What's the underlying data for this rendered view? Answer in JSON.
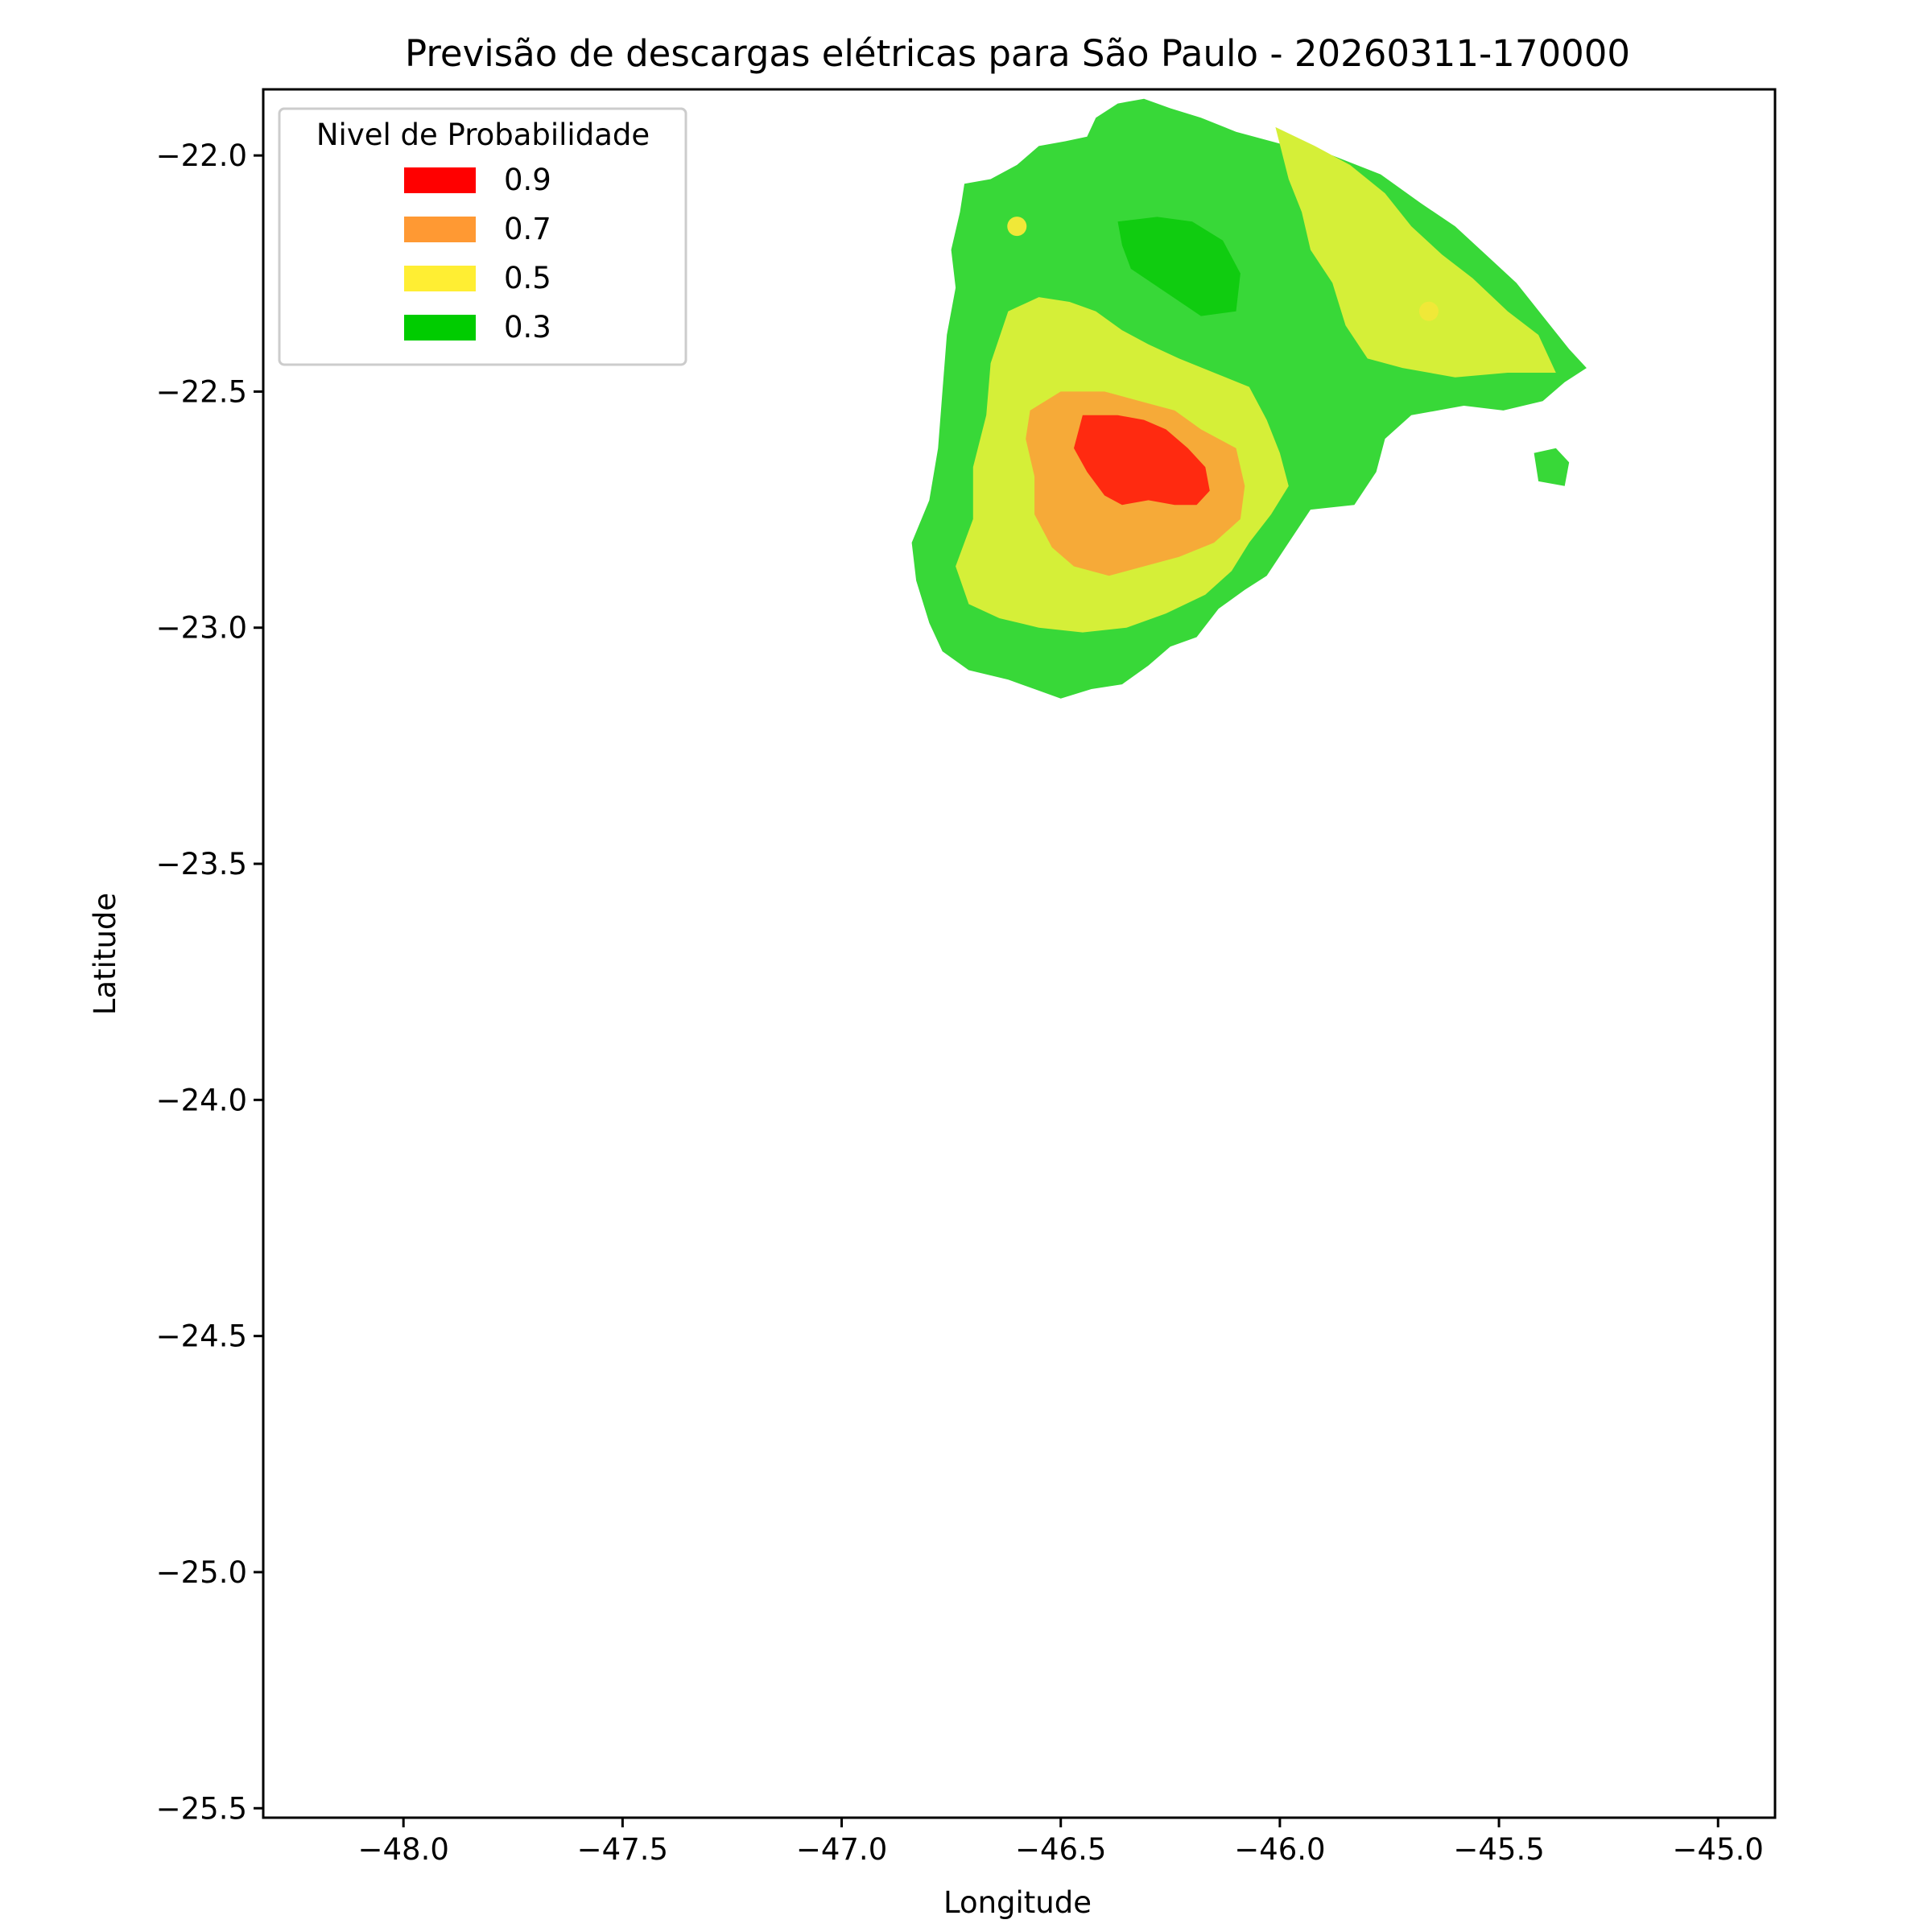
{
  "chart_data": {
    "type": "contourf",
    "title": "Previsão de descargas elétricas para São Paulo - 20260311-170000",
    "xlabel": "Longitude",
    "ylabel": "Latitude",
    "xlim": [
      -48.32,
      -44.87
    ],
    "ylim": [
      -25.52,
      -21.86
    ],
    "xticks": [
      -48.0,
      -47.5,
      -47.0,
      -46.5,
      -46.0,
      -45.5,
      -45.0
    ],
    "xtick_labels": [
      "−48.0",
      "−47.5",
      "−47.0",
      "−46.5",
      "−46.0",
      "−45.5",
      "−45.0"
    ],
    "yticks": [
      -22.0,
      -22.5,
      -23.0,
      -23.5,
      -24.0,
      -24.5,
      -25.0,
      -25.5
    ],
    "ytick_labels": [
      "−22.0",
      "−22.5",
      "−23.0",
      "−23.5",
      "−24.0",
      "−24.5",
      "−25.0",
      "−25.5"
    ],
    "legend": {
      "title": "Nivel de Probabilidade",
      "position": "upper-left",
      "entries": [
        {
          "label": "0.9",
          "color": "#ff0000"
        },
        {
          "label": "0.7",
          "color": "#ff9933"
        },
        {
          "label": "0.5",
          "color": "#ffee33"
        },
        {
          "label": "0.3",
          "color": "#00cc00"
        }
      ]
    },
    "fill_colors": {
      "outer_green": "#38d838",
      "yellow_green": "#d5ef38",
      "orange": "#f6aa38",
      "red": "#ff2a10",
      "dark_green": "#10cc10"
    },
    "regions": [
      {
        "level": "outer_green",
        "coords": [
          [
            -46.72,
            -22.06
          ],
          [
            -46.66,
            -22.05
          ],
          [
            -46.6,
            -22.02
          ],
          [
            -46.55,
            -21.98
          ],
          [
            -46.49,
            -21.97
          ],
          [
            -46.44,
            -21.96
          ],
          [
            -46.42,
            -21.92
          ],
          [
            -46.37,
            -21.89
          ],
          [
            -46.31,
            -21.88
          ],
          [
            -46.25,
            -21.9
          ],
          [
            -46.18,
            -21.92
          ],
          [
            -46.1,
            -21.95
          ],
          [
            -45.98,
            -21.98
          ],
          [
            -45.88,
            -22.0
          ],
          [
            -45.77,
            -22.04
          ],
          [
            -45.68,
            -22.1
          ],
          [
            -45.6,
            -22.15
          ],
          [
            -45.53,
            -22.21
          ],
          [
            -45.46,
            -22.27
          ],
          [
            -45.4,
            -22.34
          ],
          [
            -45.34,
            -22.41
          ],
          [
            -45.3,
            -22.45
          ],
          [
            -45.35,
            -22.48
          ],
          [
            -45.4,
            -22.52
          ],
          [
            -45.49,
            -22.54
          ],
          [
            -45.58,
            -22.53
          ],
          [
            -45.7,
            -22.55
          ],
          [
            -45.76,
            -22.6
          ],
          [
            -45.78,
            -22.67
          ],
          [
            -45.83,
            -22.74
          ],
          [
            -45.93,
            -22.75
          ],
          [
            -45.98,
            -22.82
          ],
          [
            -46.03,
            -22.89
          ],
          [
            -46.08,
            -22.92
          ],
          [
            -46.14,
            -22.96
          ],
          [
            -46.19,
            -23.02
          ],
          [
            -46.25,
            -23.04
          ],
          [
            -46.3,
            -23.08
          ],
          [
            -46.36,
            -23.12
          ],
          [
            -46.43,
            -23.13
          ],
          [
            -46.5,
            -23.15
          ],
          [
            -46.56,
            -23.13
          ],
          [
            -46.62,
            -23.11
          ],
          [
            -46.71,
            -23.09
          ],
          [
            -46.77,
            -23.05
          ],
          [
            -46.8,
            -22.99
          ],
          [
            -46.83,
            -22.9
          ],
          [
            -46.84,
            -22.82
          ],
          [
            -46.8,
            -22.73
          ],
          [
            -46.78,
            -22.62
          ],
          [
            -46.77,
            -22.5
          ],
          [
            -46.76,
            -22.38
          ],
          [
            -46.74,
            -22.28
          ],
          [
            -46.75,
            -22.2
          ],
          [
            -46.73,
            -22.12
          ]
        ]
      },
      {
        "level": "outer_green",
        "coords": [
          [
            -45.42,
            -22.63
          ],
          [
            -45.37,
            -22.62
          ],
          [
            -45.34,
            -22.65
          ],
          [
            -45.35,
            -22.7
          ],
          [
            -45.41,
            -22.69
          ]
        ]
      },
      {
        "level": "yellow_green",
        "coords": [
          [
            -46.62,
            -22.33
          ],
          [
            -46.55,
            -22.3
          ],
          [
            -46.48,
            -22.31
          ],
          [
            -46.42,
            -22.33
          ],
          [
            -46.36,
            -22.37
          ],
          [
            -46.3,
            -22.4
          ],
          [
            -46.23,
            -22.43
          ],
          [
            -46.15,
            -22.46
          ],
          [
            -46.07,
            -22.49
          ],
          [
            -46.03,
            -22.56
          ],
          [
            -46.0,
            -22.63
          ],
          [
            -45.98,
            -22.7
          ],
          [
            -46.02,
            -22.76
          ],
          [
            -46.07,
            -22.82
          ],
          [
            -46.11,
            -22.88
          ],
          [
            -46.17,
            -22.93
          ],
          [
            -46.26,
            -22.97
          ],
          [
            -46.35,
            -23.0
          ],
          [
            -46.45,
            -23.01
          ],
          [
            -46.55,
            -23.0
          ],
          [
            -46.64,
            -22.98
          ],
          [
            -46.71,
            -22.95
          ],
          [
            -46.74,
            -22.87
          ],
          [
            -46.7,
            -22.77
          ],
          [
            -46.7,
            -22.66
          ],
          [
            -46.67,
            -22.55
          ],
          [
            -46.66,
            -22.44
          ]
        ]
      },
      {
        "level": "yellow_green",
        "coords": [
          [
            -46.01,
            -21.94
          ],
          [
            -45.92,
            -21.98
          ],
          [
            -45.84,
            -22.02
          ],
          [
            -45.76,
            -22.08
          ],
          [
            -45.7,
            -22.15
          ],
          [
            -45.63,
            -22.21
          ],
          [
            -45.56,
            -22.26
          ],
          [
            -45.48,
            -22.33
          ],
          [
            -45.41,
            -22.38
          ],
          [
            -45.37,
            -22.46
          ],
          [
            -45.48,
            -22.46
          ],
          [
            -45.6,
            -22.47
          ],
          [
            -45.72,
            -22.45
          ],
          [
            -45.8,
            -22.43
          ],
          [
            -45.85,
            -22.36
          ],
          [
            -45.88,
            -22.27
          ],
          [
            -45.93,
            -22.2
          ],
          [
            -45.95,
            -22.12
          ],
          [
            -45.98,
            -22.05
          ]
        ]
      },
      {
        "level": "orange",
        "coords": [
          [
            -46.57,
            -22.54
          ],
          [
            -46.5,
            -22.5
          ],
          [
            -46.4,
            -22.5
          ],
          [
            -46.32,
            -22.52
          ],
          [
            -46.24,
            -22.54
          ],
          [
            -46.18,
            -22.58
          ],
          [
            -46.1,
            -22.62
          ],
          [
            -46.08,
            -22.7
          ],
          [
            -46.09,
            -22.77
          ],
          [
            -46.15,
            -22.82
          ],
          [
            -46.23,
            -22.85
          ],
          [
            -46.31,
            -22.87
          ],
          [
            -46.39,
            -22.89
          ],
          [
            -46.47,
            -22.87
          ],
          [
            -46.52,
            -22.83
          ],
          [
            -46.56,
            -22.76
          ],
          [
            -46.56,
            -22.68
          ],
          [
            -46.58,
            -22.6
          ]
        ]
      },
      {
        "level": "red",
        "coords": [
          [
            -46.45,
            -22.55
          ],
          [
            -46.37,
            -22.55
          ],
          [
            -46.31,
            -22.56
          ],
          [
            -46.26,
            -22.58
          ],
          [
            -46.21,
            -22.62
          ],
          [
            -46.17,
            -22.66
          ],
          [
            -46.16,
            -22.71
          ],
          [
            -46.19,
            -22.74
          ],
          [
            -46.24,
            -22.74
          ],
          [
            -46.3,
            -22.73
          ],
          [
            -46.36,
            -22.74
          ],
          [
            -46.4,
            -22.72
          ],
          [
            -46.44,
            -22.67
          ],
          [
            -46.47,
            -22.62
          ]
        ]
      },
      {
        "level": "dark_green",
        "coords": [
          [
            -46.37,
            -22.14
          ],
          [
            -46.28,
            -22.13
          ],
          [
            -46.2,
            -22.14
          ],
          [
            -46.13,
            -22.18
          ],
          [
            -46.09,
            -22.25
          ],
          [
            -46.1,
            -22.33
          ],
          [
            -46.18,
            -22.34
          ],
          [
            -46.26,
            -22.29
          ],
          [
            -46.34,
            -22.24
          ],
          [
            -46.36,
            -22.19
          ]
        ]
      }
    ],
    "markers": [
      {
        "x": -46.6,
        "y": -22.15,
        "color": "#f0e838"
      },
      {
        "x": -45.66,
        "y": -22.33,
        "color": "#f0e838"
      }
    ]
  }
}
